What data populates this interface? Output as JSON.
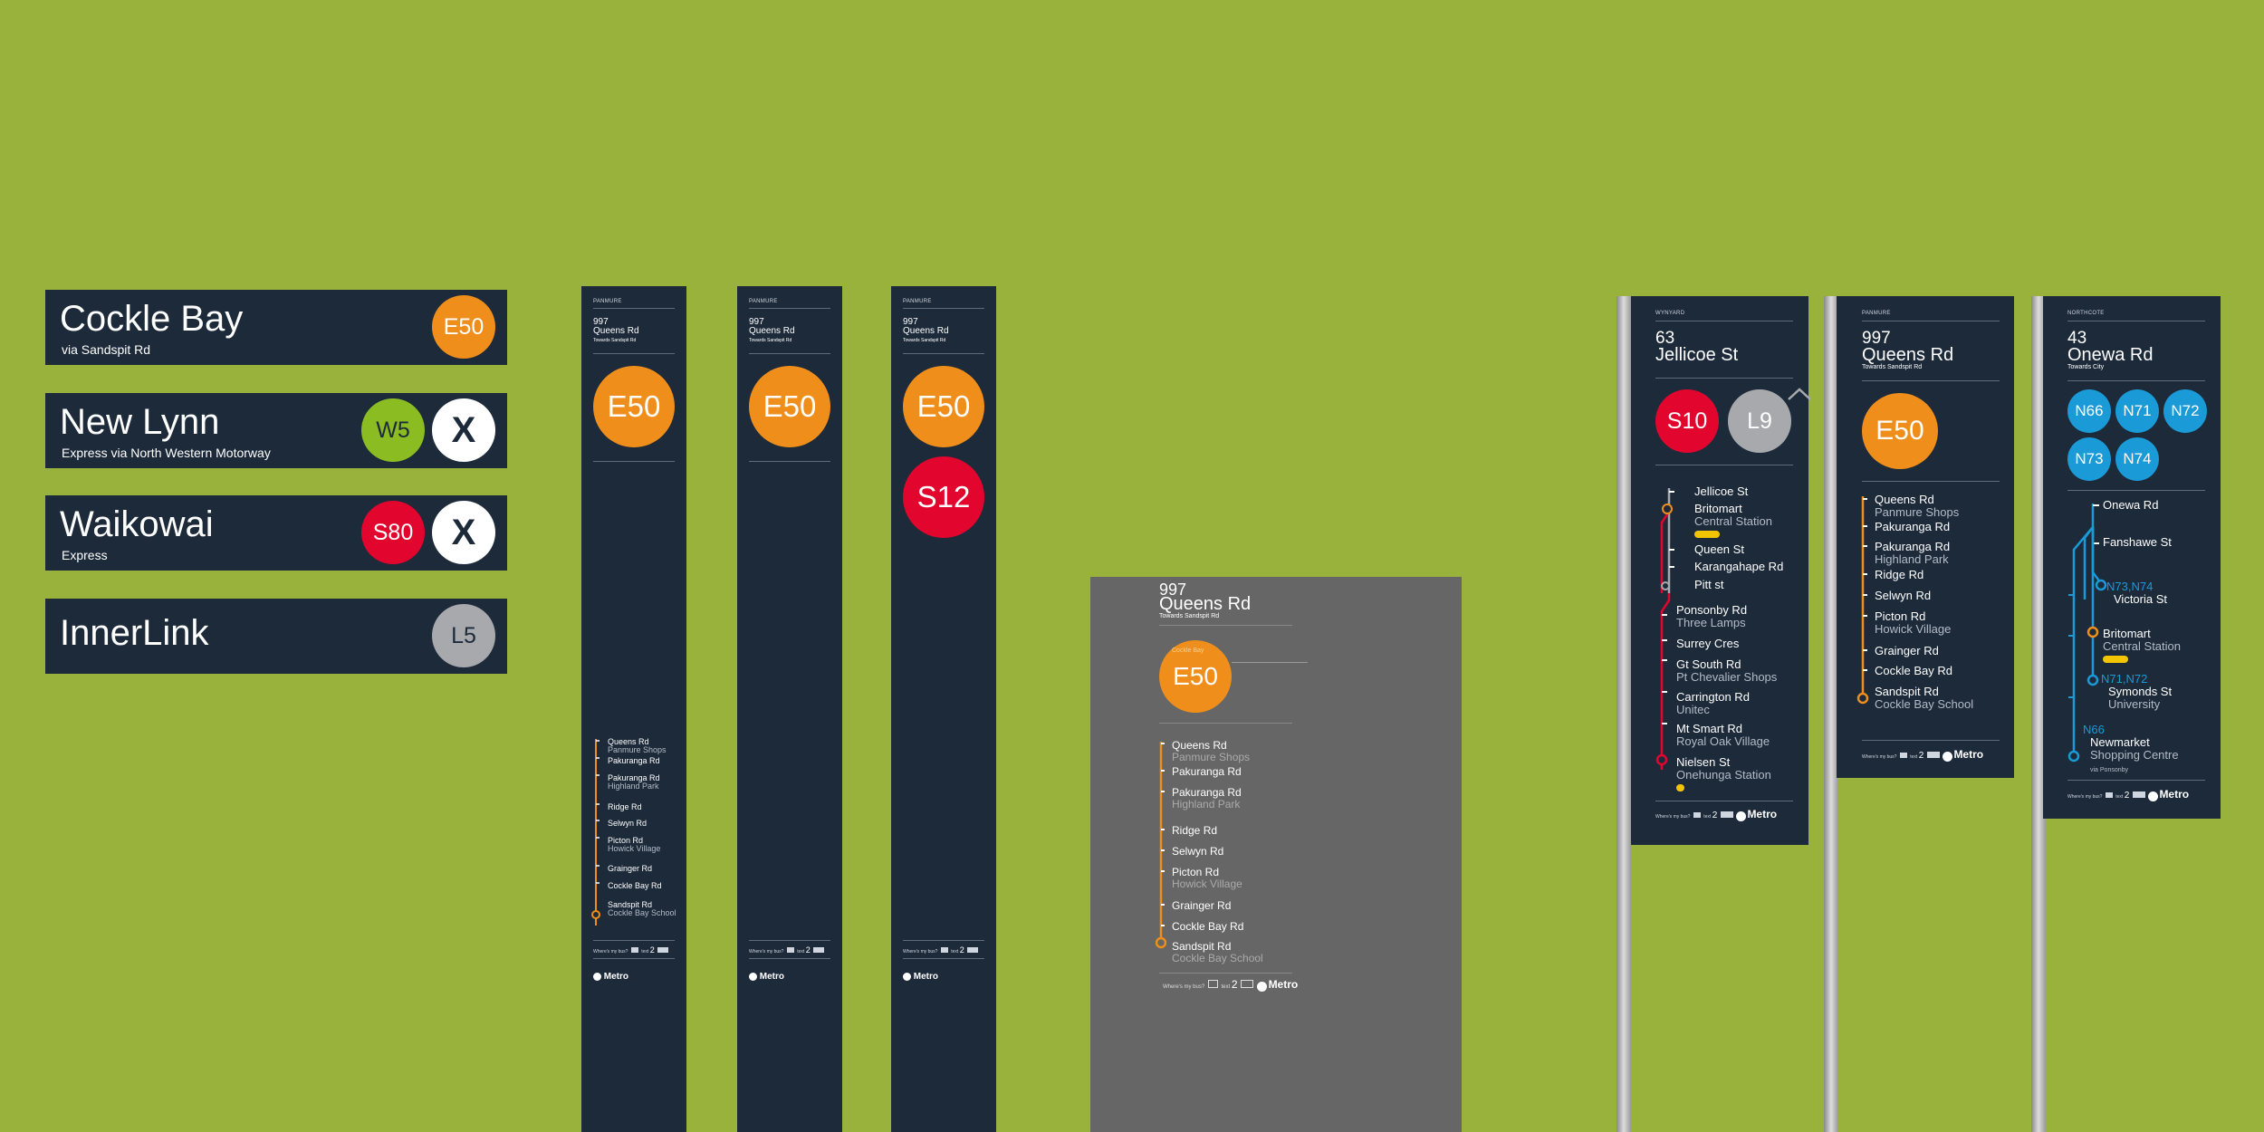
{
  "colors": {
    "background": "#99b23b",
    "navy": "#1c2a3a",
    "grey_panel": "#666666",
    "orange": "#ef8e1a",
    "red": "#e2062e",
    "grey_route": "#a7a9ac",
    "green_route": "#8bbd22",
    "blue_route": "#1a9ad6",
    "white": "#ffffff"
  },
  "headsigns": [
    {
      "dest": "Cockle Bay",
      "via": "via Sandspit Rd",
      "routes": [
        "E50"
      ]
    },
    {
      "dest": "New Lynn",
      "via": "Express via North Western Motorway",
      "routes": [
        "W5",
        "X"
      ]
    },
    {
      "dest": "Waikowai",
      "via": "Express",
      "routes": [
        "S80",
        "X"
      ]
    },
    {
      "dest": "InnerLink",
      "via": "",
      "routes": [
        "L5"
      ]
    }
  ],
  "tall_poles": [
    {
      "area": "PANMURE",
      "num": "997",
      "road": "Queens Rd",
      "towards": "Towards Sandspit Rd",
      "routes": [
        "E50"
      ],
      "show_stops": true
    },
    {
      "area": "PANMURE",
      "num": "997",
      "road": "Queens Rd",
      "towards": "Towards Sandspit Rd",
      "routes": [
        "E50"
      ],
      "show_stops": false
    },
    {
      "area": "PANMURE",
      "num": "997",
      "road": "Queens Rd",
      "towards": "Towards Sandspit Rd",
      "routes": [
        "E50",
        "S12"
      ],
      "show_stops": false
    }
  ],
  "e50_stops": [
    {
      "name": "Queens Rd",
      "sub": "Panmure Shops"
    },
    {
      "name": "Pakuranga Rd",
      "sub": ""
    },
    {
      "name": "Pakuranga Rd",
      "sub": "Highland Park"
    },
    {
      "name": "Ridge Rd",
      "sub": ""
    },
    {
      "name": "Selwyn Rd",
      "sub": ""
    },
    {
      "name": "Picton Rd",
      "sub": "Howick Village"
    },
    {
      "name": "Grainger Rd",
      "sub": ""
    },
    {
      "name": "Cockle Bay Rd",
      "sub": ""
    },
    {
      "name": "Sandspit Rd",
      "sub": "Cockle Bay School"
    }
  ],
  "footer": {
    "where": "Where's my bus?",
    "text": "text",
    "code": "2",
    "metro": "Metro"
  },
  "grey_sign": {
    "num": "997",
    "road": "Queens Rd",
    "towards": "Towards Sandspit Rd",
    "route": "E50",
    "route_caption": "Cockle Bay"
  },
  "post_signs": [
    {
      "area": "WYNYARD",
      "num": "63",
      "road": "Jellicoe St",
      "towards": "",
      "routes": [
        "S10",
        "L9"
      ],
      "stops": [
        {
          "name": "Jellicoe St",
          "sub": ""
        },
        {
          "name": "Britomart",
          "sub": "Central Station"
        },
        {
          "name": "Queen St",
          "sub": ""
        },
        {
          "name": "Karangahape Rd",
          "sub": ""
        },
        {
          "name": "Pitt st",
          "sub": ""
        },
        {
          "name": "Ponsonby Rd",
          "sub": "Three Lamps"
        },
        {
          "name": "Surrey Cres",
          "sub": ""
        },
        {
          "name": "Gt South Rd",
          "sub": "Pt Chevalier Shops"
        },
        {
          "name": "Carrington Rd",
          "sub": "Unitec"
        },
        {
          "name": "Mt Smart Rd",
          "sub": "Royal Oak Village"
        },
        {
          "name": "Nielsen St",
          "sub": "Onehunga Station"
        }
      ]
    },
    {
      "area": "PANMURE",
      "num": "997",
      "road": "Queens Rd",
      "towards": "Towards Sandspit Rd",
      "routes": [
        "E50"
      ],
      "stops": [
        {
          "name": "Queens Rd",
          "sub": "Panmure Shops"
        },
        {
          "name": "Pakuranga Rd",
          "sub": ""
        },
        {
          "name": "Pakuranga Rd",
          "sub": "Highland Park"
        },
        {
          "name": "Ridge Rd",
          "sub": ""
        },
        {
          "name": "Selwyn Rd",
          "sub": ""
        },
        {
          "name": "Picton Rd",
          "sub": "Howick Village"
        },
        {
          "name": "Grainger Rd",
          "sub": ""
        },
        {
          "name": "Cockle Bay Rd",
          "sub": ""
        },
        {
          "name": "Sandspit Rd",
          "sub": "Cockle Bay School"
        }
      ]
    },
    {
      "area": "NORTHCOTE",
      "num": "43",
      "road": "Onewa Rd",
      "towards": "Towards City",
      "routes": [
        "N66",
        "N71",
        "N72",
        "N73",
        "N74"
      ],
      "stops": [
        {
          "name": "Onewa Rd",
          "sub": "",
          "tag": ""
        },
        {
          "name": "Fanshawe St",
          "sub": "",
          "tag": ""
        },
        {
          "name": "Victoria St",
          "sub": "",
          "tag": "N73,N74"
        },
        {
          "name": "Britomart",
          "sub": "Central Station",
          "tag": ""
        },
        {
          "name": "Symonds St",
          "sub": "University",
          "tag": "N71,N72"
        },
        {
          "name": "Newmarket",
          "sub": "Shopping Centre",
          "tag": "N66",
          "via": "via Ponsonby"
        }
      ]
    }
  ]
}
